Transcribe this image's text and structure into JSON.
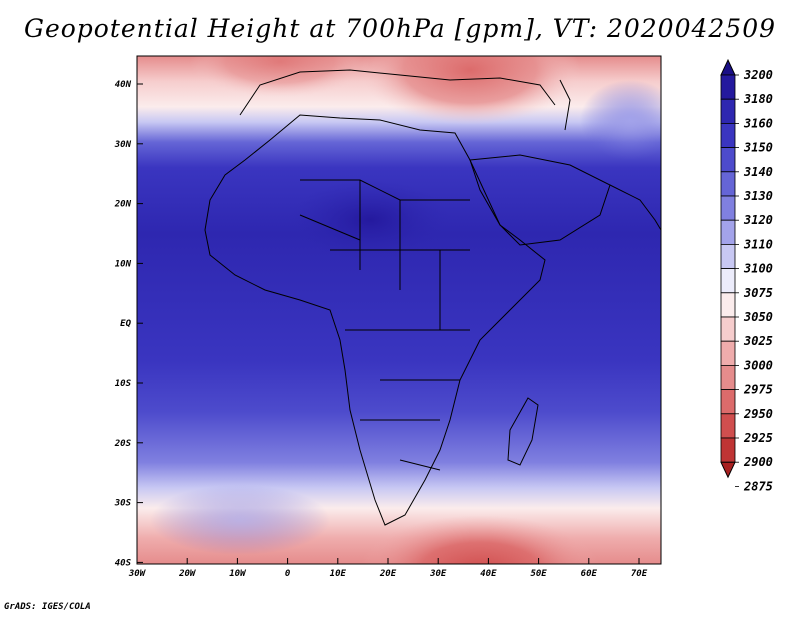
{
  "title": "Geopotential Height at 700hPa [gpm], VT: 2020042509",
  "credit": "GrADS: IGES/COLA",
  "lat_labels": [
    "40N",
    "30N",
    "20N",
    "10N",
    "EQ",
    "10S",
    "20S",
    "30S",
    "40S"
  ],
  "lon_labels": [
    "30W",
    "20W",
    "10W",
    "0",
    "10E",
    "20E",
    "30E",
    "40E",
    "50E",
    "60E",
    "70E"
  ],
  "colorbar": [
    {
      "label": "3200",
      "color": "#1a0f86"
    },
    {
      "label": "3180",
      "color": "#24199e"
    },
    {
      "label": "3160",
      "color": "#2e27b0"
    },
    {
      "label": "3150",
      "color": "#3a35c0"
    },
    {
      "label": "3140",
      "color": "#4d4bcc"
    },
    {
      "label": "3130",
      "color": "#6565d6"
    },
    {
      "label": "3120",
      "color": "#8080e0"
    },
    {
      "label": "3110",
      "color": "#a3a3ea"
    },
    {
      "label": "3100",
      "color": "#c8c8f3"
    },
    {
      "label": "3075",
      "color": "#ececfb"
    },
    {
      "label": "3050",
      "color": "#fbecec"
    },
    {
      "label": "3025",
      "color": "#f6cdcd"
    },
    {
      "label": "3000",
      "color": "#efacac"
    },
    {
      "label": "2975",
      "color": "#e58c8c"
    },
    {
      "label": "2950",
      "color": "#dc6b6b"
    },
    {
      "label": "2925",
      "color": "#d04e4e"
    },
    {
      "label": "2900",
      "color": "#bf3434"
    },
    {
      "label": "2875",
      "color": "#a82020"
    }
  ]
}
